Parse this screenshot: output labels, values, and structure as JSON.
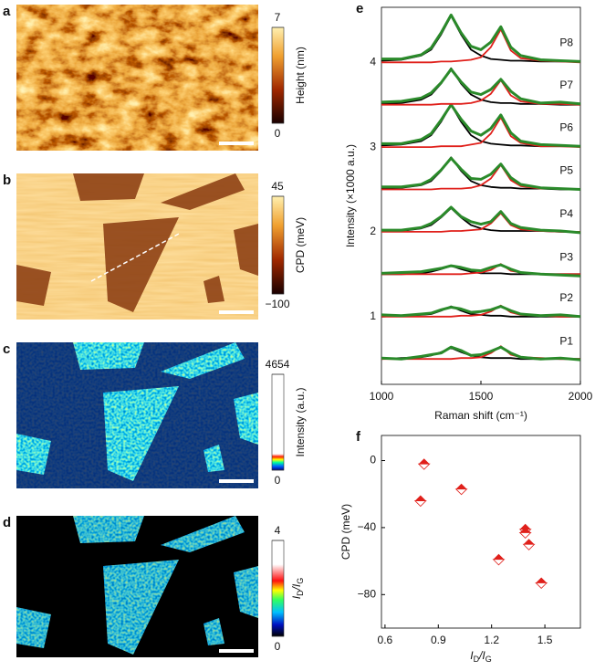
{
  "panels": [
    {
      "label": "a",
      "colorbar": {
        "title": "Height (nm)",
        "ticks": [
          7,
          0
        ]
      }
    },
    {
      "label": "b",
      "colorbar": {
        "title": "CPD (meV)",
        "ticks": [
          45,
          {
            "value": -100,
            "label": "−100"
          }
        ]
      }
    },
    {
      "label": "c",
      "colorbar": {
        "title": "Intensity (a.u.)",
        "ticks": [
          4654,
          0
        ]
      }
    },
    {
      "label": "d",
      "colorbar": {
        "title": [
          "I",
          "D",
          "/I",
          "G"
        ],
        "ticks": [
          4,
          0
        ]
      }
    }
  ],
  "chart_data": [
    {
      "type": "line",
      "label": "e",
      "xlabel": "Raman shift (cm⁻¹)",
      "ylabel": "Intensity (×1000 a.u.)",
      "x": [
        1000,
        1100,
        1200,
        1250,
        1300,
        1350,
        1400,
        1450,
        1500,
        1550,
        1600,
        1650,
        1700,
        1800,
        1900,
        2000
      ],
      "xlim": [
        1000,
        2000
      ],
      "xticks": [
        1000,
        1500,
        2000
      ],
      "ylim": [
        0.2,
        4.65
      ],
      "yticks": [
        1,
        2,
        3,
        4
      ],
      "series": [
        {
          "color": "#000000",
          "values": [
            0.5,
            0.51,
            0.52,
            0.54,
            0.58,
            0.63,
            0.58,
            0.54,
            0.52,
            0.51,
            0.51,
            0.51,
            0.5,
            0.5,
            0.5,
            0.5
          ]
        },
        {
          "color": "#e0201b",
          "values": [
            0.5,
            0.5,
            0.5,
            0.5,
            0.5,
            0.5,
            0.51,
            0.51,
            0.52,
            0.57,
            0.65,
            0.55,
            0.52,
            0.51,
            0.5,
            0.5
          ]
        },
        {
          "name": "P1",
          "color": "#2a8a2a",
          "values": [
            0.51,
            0.5,
            0.53,
            0.55,
            0.57,
            0.64,
            0.6,
            0.54,
            0.55,
            0.59,
            0.64,
            0.57,
            0.52,
            0.5,
            0.51,
            0.49
          ]
        },
        {
          "color": "#000000",
          "values": [
            1,
            1.01,
            1.02,
            1.03,
            1.07,
            1.12,
            1.07,
            1.03,
            1.02,
            1.01,
            1.01,
            1,
            1,
            1,
            1,
            1
          ]
        },
        {
          "color": "#e0201b",
          "values": [
            1,
            1,
            1,
            1,
            1,
            1,
            1.01,
            1.01,
            1.02,
            1.06,
            1.13,
            1.05,
            1.02,
            1.01,
            1,
            1
          ]
        },
        {
          "name": "P2",
          "color": "#2a8a2a",
          "values": [
            1.02,
            1.01,
            1.03,
            1.04,
            1.08,
            1.11,
            1.09,
            1.05,
            1.06,
            1.08,
            1.12,
            1.07,
            1.03,
            1.01,
            1.02,
            1
          ]
        },
        {
          "color": "#000000",
          "values": [
            1.5,
            1.5,
            1.51,
            1.53,
            1.56,
            1.6,
            1.56,
            1.53,
            1.51,
            1.51,
            1.51,
            1.5,
            1.5,
            1.5,
            1.5,
            1.5
          ]
        },
        {
          "color": "#e0201b",
          "values": [
            1.5,
            1.5,
            1.5,
            1.5,
            1.5,
            1.5,
            1.5,
            1.51,
            1.52,
            1.55,
            1.62,
            1.54,
            1.52,
            1.5,
            1.5,
            1.5
          ]
        },
        {
          "name": "P3",
          "color": "#2a8a2a",
          "values": [
            1.51,
            1.52,
            1.53,
            1.55,
            1.57,
            1.6,
            1.58,
            1.55,
            1.54,
            1.58,
            1.61,
            1.56,
            1.52,
            1.5,
            1.49,
            1.48
          ]
        },
        {
          "color": "#000000",
          "values": [
            2.01,
            2.01,
            2.04,
            2.08,
            2.17,
            2.28,
            2.17,
            2.08,
            2.04,
            2.02,
            2.01,
            2.01,
            2.01,
            2.01,
            2,
            2
          ]
        },
        {
          "color": "#e0201b",
          "values": [
            2,
            2,
            2,
            2,
            2,
            2.01,
            2.01,
            2.02,
            2.03,
            2.1,
            2.22,
            2.08,
            2.03,
            2.01,
            2,
            2
          ]
        },
        {
          "name": "P4",
          "color": "#2a8a2a",
          "values": [
            2.02,
            2.02,
            2.05,
            2.1,
            2.18,
            2.29,
            2.18,
            2.12,
            2.09,
            2.12,
            2.24,
            2.1,
            2.05,
            2.02,
            2.01,
            1.99
          ]
        },
        {
          "color": "#000000",
          "values": [
            2.51,
            2.52,
            2.55,
            2.6,
            2.72,
            2.88,
            2.72,
            2.6,
            2.55,
            2.53,
            2.52,
            2.52,
            2.51,
            2.51,
            2.5,
            2.5
          ]
        },
        {
          "color": "#e0201b",
          "values": [
            2.5,
            2.5,
            2.5,
            2.5,
            2.51,
            2.51,
            2.51,
            2.52,
            2.55,
            2.63,
            2.79,
            2.61,
            2.54,
            2.51,
            2.51,
            2.5
          ]
        },
        {
          "name": "P5",
          "color": "#2a8a2a",
          "values": [
            2.53,
            2.53,
            2.56,
            2.62,
            2.73,
            2.87,
            2.74,
            2.63,
            2.62,
            2.68,
            2.8,
            2.64,
            2.56,
            2.52,
            2.51,
            2.5
          ]
        },
        {
          "color": "#000000",
          "values": [
            3.02,
            3.03,
            3.07,
            3.14,
            3.3,
            3.5,
            3.3,
            3.14,
            3.07,
            3.04,
            3.03,
            3.02,
            3.02,
            3.01,
            3.01,
            3.01
          ]
        },
        {
          "color": "#e0201b",
          "values": [
            3,
            3,
            3,
            3,
            3.01,
            3.01,
            3.01,
            3.03,
            3.05,
            3.16,
            3.35,
            3.13,
            3.05,
            3.01,
            3.01,
            3
          ]
        },
        {
          "name": "P6",
          "color": "#2a8a2a",
          "values": [
            3.04,
            3.04,
            3.09,
            3.16,
            3.32,
            3.5,
            3.33,
            3.19,
            3.14,
            3.22,
            3.38,
            3.17,
            3.07,
            3.03,
            3.02,
            3.01
          ]
        },
        {
          "color": "#000000",
          "values": [
            3.51,
            3.52,
            3.56,
            3.62,
            3.75,
            3.93,
            3.75,
            3.62,
            3.56,
            3.53,
            3.52,
            3.52,
            3.51,
            3.51,
            3.5,
            3.5
          ]
        },
        {
          "color": "#e0201b",
          "values": [
            3.5,
            3.5,
            3.5,
            3.5,
            3.51,
            3.51,
            3.51,
            3.52,
            3.55,
            3.63,
            3.79,
            3.61,
            3.54,
            3.51,
            3.51,
            3.5
          ]
        },
        {
          "name": "P7",
          "color": "#2a8a2a",
          "values": [
            3.53,
            3.54,
            3.58,
            3.64,
            3.76,
            3.92,
            3.77,
            3.65,
            3.62,
            3.68,
            3.8,
            3.66,
            3.57,
            3.52,
            3.53,
            3.51
          ]
        },
        {
          "color": "#000000",
          "values": [
            4.02,
            4.03,
            4.08,
            4.15,
            4.33,
            4.55,
            4.33,
            4.15,
            4.08,
            4.04,
            4.03,
            4.02,
            4.02,
            4.01,
            4.01,
            4.01
          ]
        },
        {
          "color": "#e0201b",
          "values": [
            4,
            4,
            4,
            4,
            4.01,
            4.01,
            4.02,
            4.03,
            4.06,
            4.18,
            4.39,
            4.14,
            4.05,
            4.02,
            4.01,
            4
          ]
        },
        {
          "name": "P8",
          "color": "#2a8a2a",
          "values": [
            4.04,
            4.04,
            4.09,
            4.17,
            4.35,
            4.56,
            4.35,
            4.19,
            4.15,
            4.24,
            4.42,
            4.18,
            4.08,
            4.03,
            4.02,
            4.01
          ]
        }
      ]
    },
    {
      "type": "scatter",
      "label": "f",
      "xlabel": [
        "I",
        "D",
        "/I",
        "G"
      ],
      "ylabel": "CPD (meV)",
      "x": [
        0.8,
        0.82,
        1.03,
        1.24,
        1.39,
        1.39,
        1.41,
        1.48
      ],
      "values": [
        -24,
        -2,
        -17,
        -59,
        -41,
        -43,
        -50,
        -73
      ],
      "xlim": [
        0.58,
        1.7
      ],
      "xticks": [
        0.6,
        0.9,
        1.2,
        1.5
      ],
      "ylim": [
        -100,
        15
      ],
      "yticks": [
        0,
        {
          "value": -40,
          "label": "−40"
        },
        {
          "value": -80,
          "label": "−80"
        }
      ],
      "color": "#e0201b"
    }
  ]
}
